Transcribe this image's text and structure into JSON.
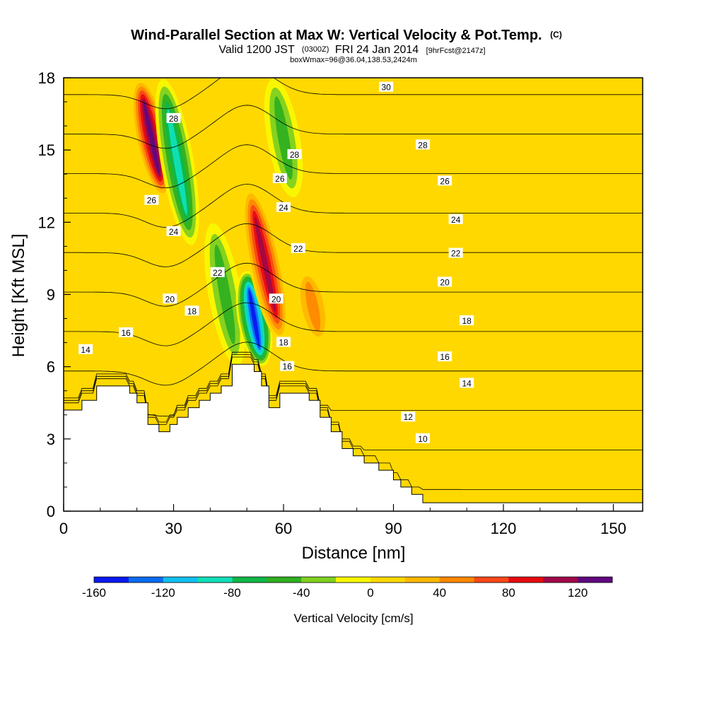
{
  "chart_data": {
    "type": "heatmap",
    "title": "Wind-Parallel Section at Max W: Vertical Velocity & Pot.Temp.",
    "title_suffix": "(C)",
    "subtitle_main": "Valid 1200 JST",
    "subtitle_utc": "(0300Z)",
    "subtitle_date": "FRI 24 Jan 2014",
    "subtitle_fcst": "[9hrFcst@2147z]",
    "subtitle2": "boxWmax=96@36.04,138.53,2424m",
    "xlabel": "Distance [nm]",
    "ylabel": "Height [Kft MSL]",
    "xlim": [
      0,
      158
    ],
    "ylim": [
      0,
      18
    ],
    "xticks": [
      "0",
      "30",
      "60",
      "90",
      "120",
      "150"
    ],
    "yticks": [
      "0",
      "3",
      "6",
      "9",
      "12",
      "15",
      "18"
    ],
    "colorbar": {
      "label": "Vertical Velocity [cm/s]",
      "ticks": [
        "-160",
        "-120",
        "-80",
        "-40",
        "0",
        "40",
        "80",
        "120"
      ],
      "colors": [
        "#0a18f0",
        "#0a6cf0",
        "#10c0f0",
        "#10e0b8",
        "#10b848",
        "#30b020",
        "#80d020",
        "#f8f800",
        "#ffd800",
        "#ffb800",
        "#ff8800",
        "#f84818",
        "#e80a10",
        "#a00848",
        "#600880"
      ]
    },
    "terrain_profile": [
      [
        0,
        4.2
      ],
      [
        5,
        4.2
      ],
      [
        5,
        4.6
      ],
      [
        9,
        4.6
      ],
      [
        9,
        5.2
      ],
      [
        18,
        5.2
      ],
      [
        18,
        4.9
      ],
      [
        20,
        4.9
      ],
      [
        20,
        4.5
      ],
      [
        23,
        4.5
      ],
      [
        23,
        3.6
      ],
      [
        26,
        3.6
      ],
      [
        26,
        3.3
      ],
      [
        29,
        3.3
      ],
      [
        29,
        3.6
      ],
      [
        31,
        3.6
      ],
      [
        31,
        3.9
      ],
      [
        34,
        3.9
      ],
      [
        34,
        4.3
      ],
      [
        37,
        4.3
      ],
      [
        37,
        4.6
      ],
      [
        40,
        4.6
      ],
      [
        40,
        4.9
      ],
      [
        43,
        4.9
      ],
      [
        43,
        5.2
      ],
      [
        46,
        5.2
      ],
      [
        46,
        6.1
      ],
      [
        52,
        6.1
      ],
      [
        52,
        5.8
      ],
      [
        54,
        5.8
      ],
      [
        54,
        5.2
      ],
      [
        56,
        5.2
      ],
      [
        56,
        4.3
      ],
      [
        59,
        4.3
      ],
      [
        59,
        4.9
      ],
      [
        67,
        4.9
      ],
      [
        67,
        4.6
      ],
      [
        70,
        4.6
      ],
      [
        70,
        3.9
      ],
      [
        73,
        3.9
      ],
      [
        73,
        3.3
      ],
      [
        76,
        3.3
      ],
      [
        76,
        2.6
      ],
      [
        79,
        2.6
      ],
      [
        79,
        2.3
      ],
      [
        82,
        2.3
      ],
      [
        82,
        2.0
      ],
      [
        86,
        2.0
      ],
      [
        86,
        1.7
      ],
      [
        90,
        1.7
      ],
      [
        90,
        1.3
      ],
      [
        92,
        1.3
      ],
      [
        92,
        1.0
      ],
      [
        95,
        1.0
      ],
      [
        95,
        0.7
      ],
      [
        98,
        0.7
      ],
      [
        98,
        0.35
      ],
      [
        158,
        0.35
      ]
    ],
    "theta_contours": [
      10,
      12,
      14,
      16,
      18,
      20,
      22,
      24,
      26,
      28,
      30
    ],
    "contour_labels": [
      {
        "text": "14",
        "x": 6,
        "y": 6.7
      },
      {
        "text": "16",
        "x": 17,
        "y": 7.4
      },
      {
        "text": "20",
        "x": 29,
        "y": 8.8
      },
      {
        "text": "18",
        "x": 35,
        "y": 8.3
      },
      {
        "text": "24",
        "x": 30,
        "y": 11.6
      },
      {
        "text": "26",
        "x": 24,
        "y": 12.9
      },
      {
        "text": "28",
        "x": 30,
        "y": 16.3
      },
      {
        "text": "22",
        "x": 42,
        "y": 9.9
      },
      {
        "text": "20",
        "x": 58,
        "y": 8.8
      },
      {
        "text": "18",
        "x": 60,
        "y": 7.0
      },
      {
        "text": "16",
        "x": 61,
        "y": 6.0
      },
      {
        "text": "28",
        "x": 63,
        "y": 14.8
      },
      {
        "text": "26",
        "x": 59,
        "y": 13.8
      },
      {
        "text": "24",
        "x": 60,
        "y": 12.6
      },
      {
        "text": "22",
        "x": 64,
        "y": 10.9
      },
      {
        "text": "30",
        "x": 88,
        "y": 17.6
      },
      {
        "text": "28",
        "x": 98,
        "y": 15.2
      },
      {
        "text": "26",
        "x": 104,
        "y": 13.7
      },
      {
        "text": "24",
        "x": 107,
        "y": 12.1
      },
      {
        "text": "22",
        "x": 107,
        "y": 10.7
      },
      {
        "text": "20",
        "x": 104,
        "y": 9.5
      },
      {
        "text": "18",
        "x": 110,
        "y": 7.9
      },
      {
        "text": "16",
        "x": 104,
        "y": 6.4
      },
      {
        "text": "14",
        "x": 110,
        "y": 5.3
      },
      {
        "text": "12",
        "x": 94,
        "y": 3.9
      },
      {
        "text": "10",
        "x": 98,
        "y": 3.0
      }
    ],
    "velocity_features": [
      {
        "x": 24,
        "y0": 13,
        "y1": 18,
        "value": 130
      },
      {
        "x": 31,
        "y0": 11,
        "y1": 18,
        "value": -90
      },
      {
        "x": 44,
        "y0": 6,
        "y1": 12,
        "value": -50
      },
      {
        "x": 52,
        "y0": 6,
        "y1": 10,
        "value": -160
      },
      {
        "x": 55,
        "y0": 7,
        "y1": 13.5,
        "value": 120
      },
      {
        "x": 60,
        "y0": 13,
        "y1": 18,
        "value": -60
      },
      {
        "x": 68,
        "y0": 7,
        "y1": 10,
        "value": 50
      }
    ]
  }
}
